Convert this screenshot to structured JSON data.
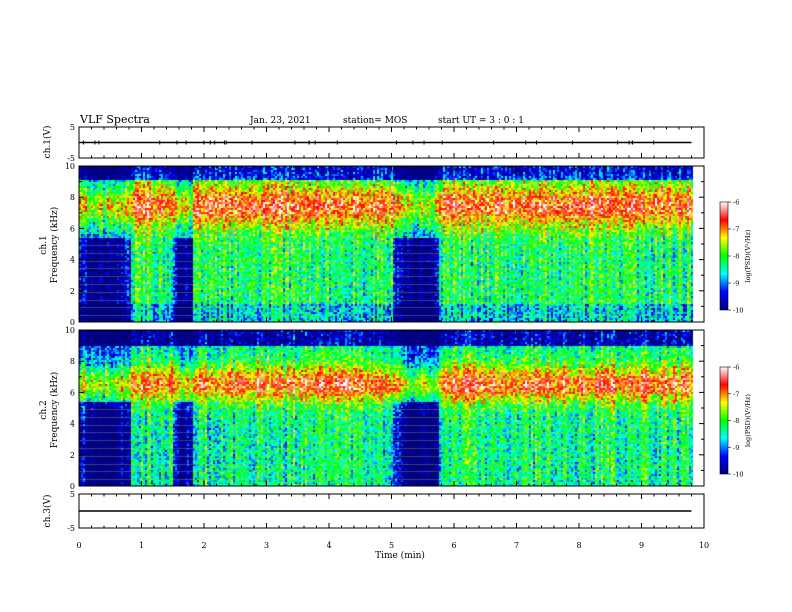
{
  "header": {
    "title": "VLF Spectra",
    "date": "Jan. 23, 2021",
    "station": "station= MOS",
    "start": "start  UT =   3 : 0 : 1"
  },
  "chart_data": {
    "type": "heatmap",
    "x_axis": {
      "label": "Time (min)",
      "range": [
        0,
        10
      ],
      "ticks": [
        "0",
        "1",
        "2",
        "3",
        "4",
        "5",
        "6",
        "7",
        "8",
        "9",
        "10"
      ]
    },
    "panels": [
      {
        "id": "ch1-voltage",
        "ylabel": "ch.1(V)",
        "ylim": [
          -5,
          5
        ],
        "ticks": [
          "5",
          "-5"
        ],
        "trace_level": 0
      },
      {
        "id": "ch1-spectrogram",
        "ylabel": "ch.1\nFrequency (kHz)",
        "ylabel_top": "ch.1",
        "ylabel_bottom": "Frequency (kHz)",
        "ylim": [
          0,
          10
        ],
        "ticks": [
          "0",
          "2",
          "4",
          "6",
          "8",
          "10"
        ]
      },
      {
        "id": "ch2-spectrogram",
        "ylabel": "ch.2\nFrequency (kHz)",
        "ylabel_top": "ch.2",
        "ylabel_bottom": "Frequency (kHz)",
        "ylim": [
          0,
          10
        ],
        "ticks": [
          "0",
          "2",
          "4",
          "6",
          "8",
          "10"
        ]
      },
      {
        "id": "ch3-voltage",
        "ylabel": "ch.3(V)",
        "ylim": [
          -5,
          5
        ],
        "ticks": [
          "5",
          "-5"
        ],
        "trace_level": 0
      }
    ],
    "colorbar": {
      "label": "log(PSD)(V²/Hz)",
      "range": [
        -10,
        -6
      ],
      "ticks": [
        "-6",
        "-7",
        "-8",
        "-9",
        "-10"
      ],
      "colormap": [
        "#000080",
        "#0000ff",
        "#00ffff",
        "#00ff00",
        "#ffff00",
        "#ff0000",
        "#ffffff"
      ]
    },
    "quiet_intervals_min": [
      [
        0.0,
        0.8
      ],
      [
        1.5,
        1.8
      ],
      [
        5.0,
        5.75
      ]
    ],
    "data_end_min": 9.8
  }
}
